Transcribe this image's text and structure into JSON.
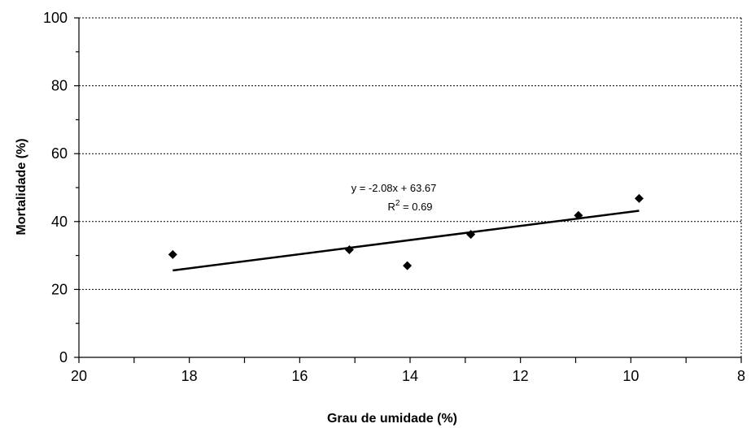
{
  "chart_data": {
    "type": "scatter",
    "title": "",
    "xlabel": "Grau de umidade (%)",
    "ylabel": "Mortalidade (%)",
    "xlim": [
      20,
      8
    ],
    "ylim": [
      0,
      100
    ],
    "x_reversed": true,
    "x_ticks": [
      20,
      18,
      16,
      14,
      12,
      10,
      8
    ],
    "y_ticks": [
      0,
      20,
      40,
      60,
      80,
      100
    ],
    "grid": "horizontal dotted",
    "marker": "diamond",
    "series": [
      {
        "points": [
          {
            "x": 18.3,
            "y": 30.3
          },
          {
            "x": 15.1,
            "y": 31.7
          },
          {
            "x": 14.05,
            "y": 27.0
          },
          {
            "x": 12.9,
            "y": 36.2
          },
          {
            "x": 10.95,
            "y": 41.8
          },
          {
            "x": 9.85,
            "y": 46.8
          }
        ]
      }
    ],
    "trendline": {
      "slope": -2.08,
      "intercept": 63.67,
      "x_from": 18.3,
      "x_to": 9.85
    },
    "annotations": {
      "equation": "y = -2.08x + 63.67",
      "r2_prefix": "R",
      "r2_sup": "2",
      "r2_value": " = 0.69"
    }
  }
}
